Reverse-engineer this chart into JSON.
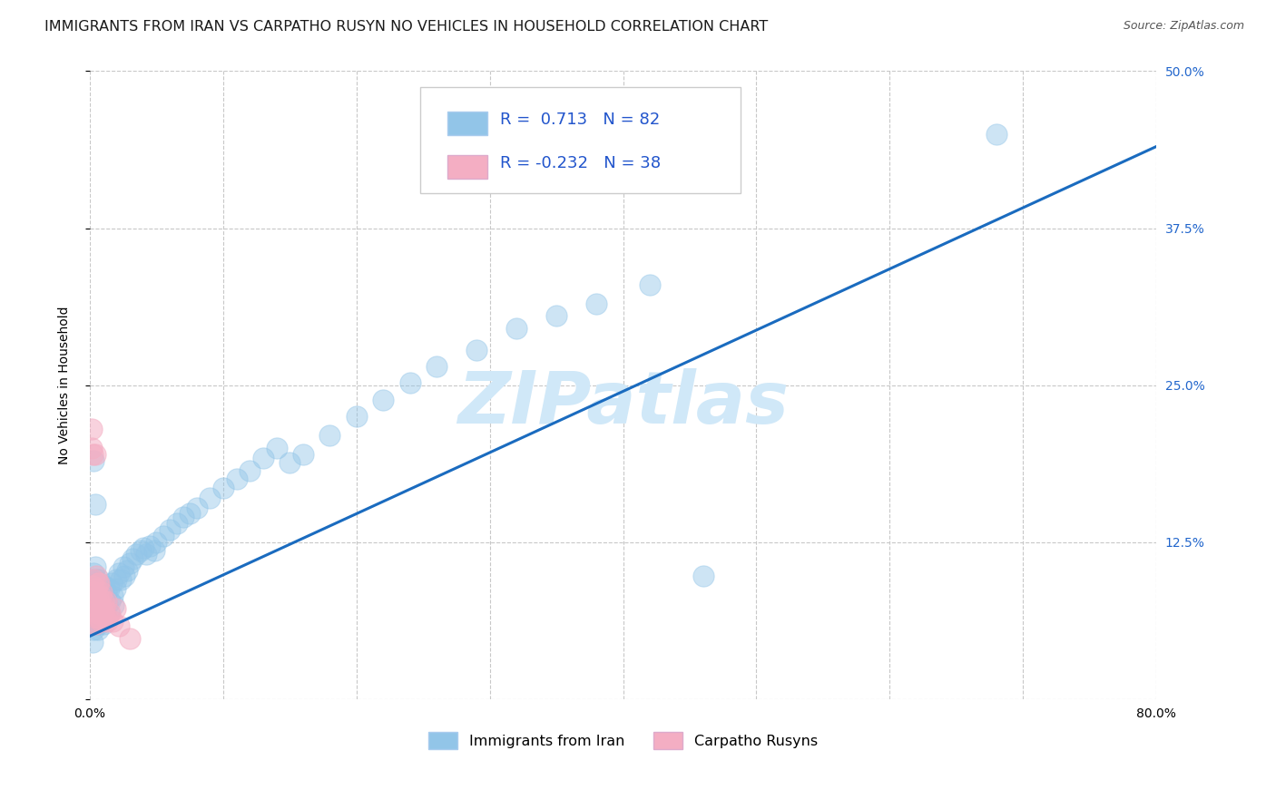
{
  "title": "IMMIGRANTS FROM IRAN VS CARPATHO RUSYN NO VEHICLES IN HOUSEHOLD CORRELATION CHART",
  "source": "Source: ZipAtlas.com",
  "ylabel": "No Vehicles in Household",
  "xlim": [
    0,
    0.8
  ],
  "ylim": [
    0,
    0.5
  ],
  "xticks": [
    0.0,
    0.1,
    0.2,
    0.3,
    0.4,
    0.5,
    0.6,
    0.7,
    0.8
  ],
  "yticks": [
    0.0,
    0.125,
    0.25,
    0.375,
    0.5
  ],
  "yticklabels_right": [
    "",
    "12.5%",
    "25.0%",
    "37.5%",
    "50.0%"
  ],
  "blue_R": "0.713",
  "blue_N": "82",
  "pink_R": "-0.232",
  "pink_N": "38",
  "blue_color": "#92c5e8",
  "pink_color": "#f4aec3",
  "line_color": "#1a6bbf",
  "watermark_color": "#d0e8f8",
  "blue_points_x": [
    0.001,
    0.001,
    0.002,
    0.002,
    0.002,
    0.003,
    0.003,
    0.003,
    0.004,
    0.004,
    0.004,
    0.004,
    0.005,
    0.005,
    0.005,
    0.006,
    0.006,
    0.006,
    0.007,
    0.007,
    0.007,
    0.008,
    0.008,
    0.009,
    0.009,
    0.01,
    0.01,
    0.011,
    0.011,
    0.012,
    0.012,
    0.013,
    0.014,
    0.014,
    0.015,
    0.016,
    0.017,
    0.018,
    0.019,
    0.02,
    0.022,
    0.023,
    0.025,
    0.026,
    0.028,
    0.03,
    0.032,
    0.035,
    0.038,
    0.04,
    0.042,
    0.045,
    0.048,
    0.05,
    0.055,
    0.06,
    0.065,
    0.07,
    0.075,
    0.08,
    0.09,
    0.1,
    0.11,
    0.12,
    0.13,
    0.14,
    0.15,
    0.16,
    0.18,
    0.2,
    0.22,
    0.24,
    0.26,
    0.29,
    0.32,
    0.35,
    0.38,
    0.42,
    0.46,
    0.68,
    0.003,
    0.004
  ],
  "blue_points_y": [
    0.06,
    0.085,
    0.045,
    0.075,
    0.095,
    0.055,
    0.08,
    0.1,
    0.06,
    0.075,
    0.09,
    0.105,
    0.065,
    0.08,
    0.095,
    0.055,
    0.07,
    0.09,
    0.06,
    0.08,
    0.095,
    0.065,
    0.085,
    0.07,
    0.09,
    0.06,
    0.082,
    0.07,
    0.09,
    0.065,
    0.085,
    0.075,
    0.068,
    0.088,
    0.078,
    0.092,
    0.082,
    0.075,
    0.088,
    0.095,
    0.1,
    0.095,
    0.105,
    0.098,
    0.102,
    0.108,
    0.112,
    0.115,
    0.118,
    0.12,
    0.115,
    0.122,
    0.118,
    0.125,
    0.13,
    0.135,
    0.14,
    0.145,
    0.148,
    0.152,
    0.16,
    0.168,
    0.175,
    0.182,
    0.192,
    0.2,
    0.188,
    0.195,
    0.21,
    0.225,
    0.238,
    0.252,
    0.265,
    0.278,
    0.295,
    0.305,
    0.315,
    0.33,
    0.098,
    0.45,
    0.19,
    0.155
  ],
  "blue_point_size": 280,
  "pink_points_x": [
    0.001,
    0.001,
    0.001,
    0.002,
    0.002,
    0.002,
    0.003,
    0.003,
    0.003,
    0.004,
    0.004,
    0.004,
    0.005,
    0.005,
    0.005,
    0.005,
    0.006,
    0.006,
    0.006,
    0.007,
    0.007,
    0.007,
    0.008,
    0.008,
    0.008,
    0.009,
    0.009,
    0.01,
    0.01,
    0.011,
    0.012,
    0.012,
    0.013,
    0.015,
    0.017,
    0.019,
    0.022,
    0.03
  ],
  "pink_points_y": [
    0.2,
    0.215,
    0.075,
    0.06,
    0.09,
    0.195,
    0.07,
    0.085,
    0.095,
    0.06,
    0.08,
    0.195,
    0.065,
    0.078,
    0.088,
    0.098,
    0.068,
    0.082,
    0.092,
    0.065,
    0.078,
    0.092,
    0.07,
    0.082,
    0.062,
    0.072,
    0.085,
    0.068,
    0.078,
    0.072,
    0.065,
    0.078,
    0.062,
    0.068,
    0.062,
    0.072,
    0.058,
    0.048
  ],
  "pink_point_size": 280,
  "trend_x": [
    0.0,
    0.8
  ],
  "trend_y": [
    0.05,
    0.44
  ],
  "grid_color": "#c8c8c8",
  "bg_color": "#ffffff",
  "title_fontsize": 11.5,
  "axis_label_fontsize": 10,
  "tick_fontsize": 10,
  "legend_fontsize": 13
}
